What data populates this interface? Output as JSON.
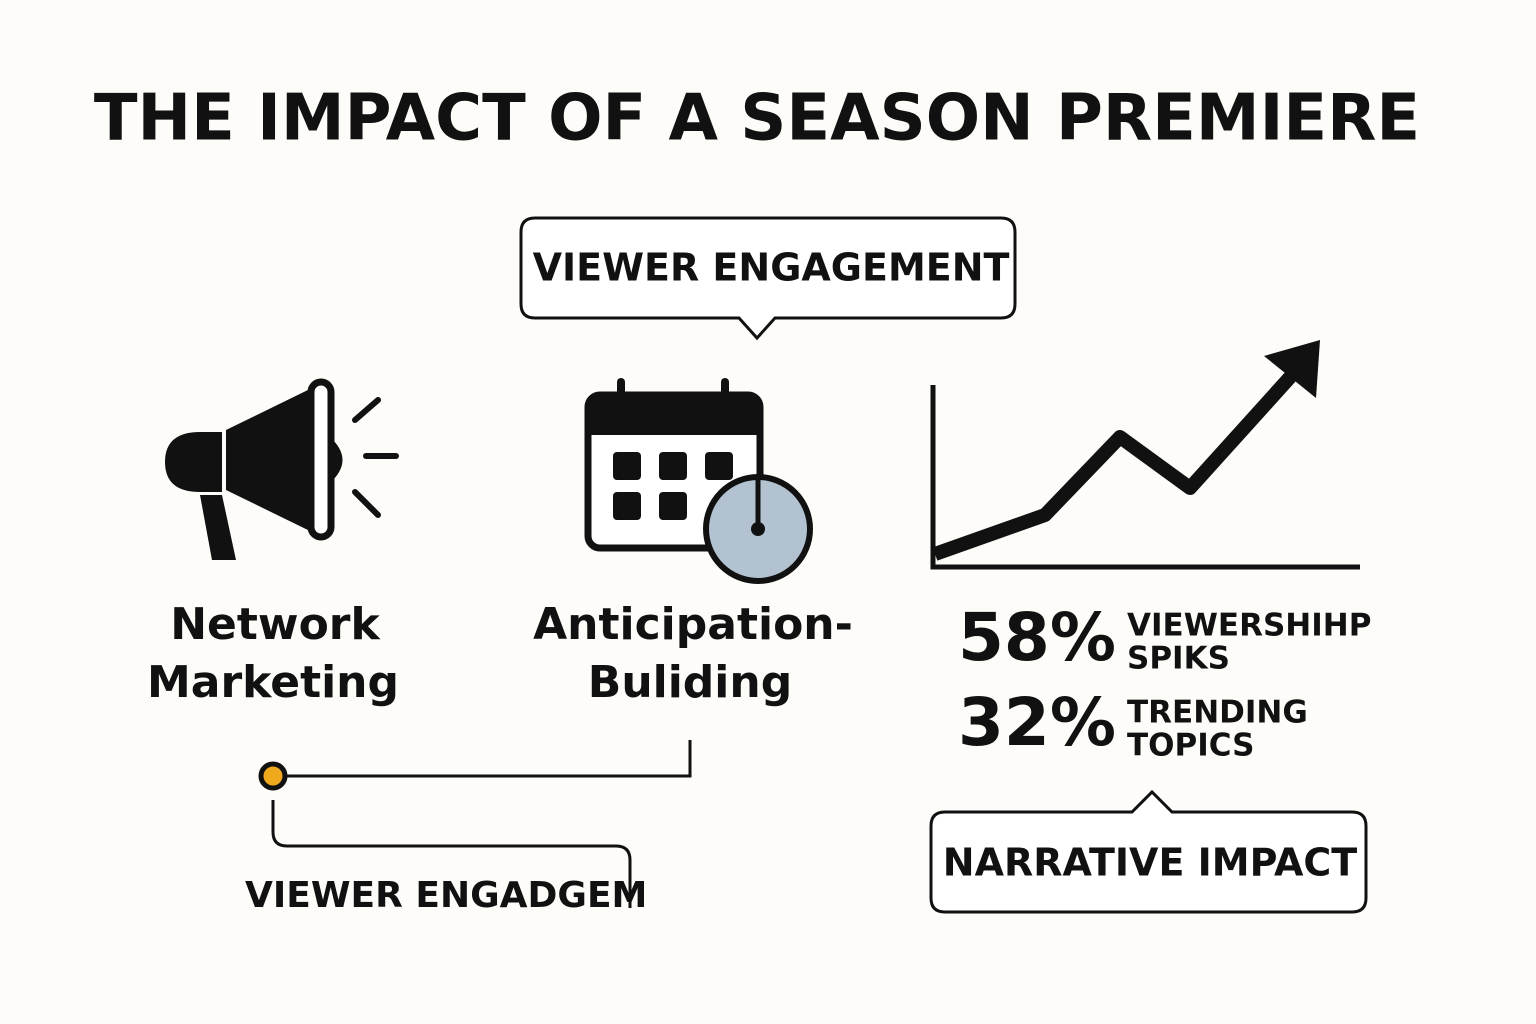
{
  "title": "THE IMPACT OF A SEASON PREMIERE",
  "callout_top": "VIEWER ENGAGEMENT",
  "items": [
    {
      "lines": [
        "Network",
        "Marketing"
      ]
    },
    {
      "lines": [
        "Anticipation-",
        "Buliding"
      ]
    }
  ],
  "stats": [
    {
      "value": "58%",
      "lines": [
        "VIEWERSHIHP",
        "SPIKS"
      ]
    },
    {
      "value": "32%",
      "lines": [
        "TRENDING",
        "TOPICS"
      ]
    }
  ],
  "bottom_label": "VIEWER ENGADGEM",
  "callout_bottom": "NARRATIVE IMPACT"
}
